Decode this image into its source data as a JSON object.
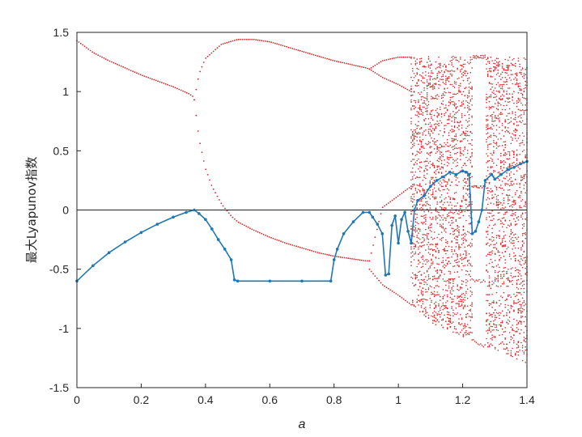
{
  "chart_data": {
    "type": "scatter",
    "title": "",
    "xlabel": "a",
    "ylabel": "最大Lyapunov指数",
    "xlim": [
      0,
      1.4
    ],
    "ylim": [
      -1.5,
      1.5
    ],
    "xticks": [
      0,
      0.2,
      0.4,
      0.6,
      0.8,
      1,
      1.2,
      1.4
    ],
    "xtick_labels": [
      "0",
      "0.2",
      "0.4",
      "0.6",
      "0.8",
      "1",
      "1.2",
      "1.4"
    ],
    "yticks": [
      -1.5,
      -1,
      -0.5,
      0,
      0.5,
      1,
      1.5
    ],
    "ytick_labels": [
      "-1.5",
      "-1",
      "-0.5",
      "0",
      "0.5",
      "1",
      "1.5"
    ],
    "grid": false,
    "reference_line_y": 0,
    "series": [
      {
        "kind": "bifurcation-scatter",
        "color": "#d62728",
        "branches": [
          {
            "x": [
              0.0,
              0.05,
              0.1,
              0.15,
              0.2,
              0.25,
              0.3,
              0.35,
              0.36
            ],
            "y": [
              1.43,
              1.33,
              1.26,
              1.2,
              1.14,
              1.09,
              1.04,
              0.98,
              0.96
            ]
          },
          {
            "x": [
              0.365,
              0.38,
              0.4,
              0.45,
              0.5,
              0.55,
              0.6,
              0.65,
              0.7,
              0.75,
              0.8,
              0.85,
              0.9,
              0.91
            ],
            "y": [
              0.93,
              1.15,
              1.28,
              1.4,
              1.44,
              1.44,
              1.42,
              1.38,
              1.34,
              1.3,
              1.26,
              1.23,
              1.2,
              1.19
            ]
          },
          {
            "x": [
              0.365,
              0.38,
              0.4,
              0.42,
              0.45,
              0.48,
              0.5,
              0.55,
              0.6,
              0.65,
              0.7,
              0.75,
              0.8,
              0.85,
              0.9,
              0.91
            ],
            "y": [
              0.93,
              0.6,
              0.35,
              0.2,
              0.05,
              -0.05,
              -0.1,
              -0.17,
              -0.23,
              -0.28,
              -0.32,
              -0.36,
              -0.39,
              -0.41,
              -0.43,
              -0.43
            ]
          },
          {
            "x": [
              0.91,
              0.95,
              1.0,
              1.02,
              1.04
            ],
            "y": [
              1.19,
              1.26,
              1.29,
              1.29,
              1.29
            ]
          },
          {
            "x": [
              0.91,
              0.95,
              1.0,
              1.02,
              1.04
            ],
            "y": [
              1.19,
              1.12,
              1.06,
              1.03,
              1.0
            ]
          },
          {
            "x": [
              0.91,
              0.95,
              1.0,
              1.02,
              1.04
            ],
            "y": [
              -0.43,
              0.02,
              0.12,
              0.16,
              0.2
            ]
          },
          {
            "x": [
              0.91,
              0.95,
              1.0,
              1.02,
              1.04
            ],
            "y": [
              -0.5,
              -0.63,
              -0.72,
              -0.76,
              -0.8
            ]
          }
        ],
        "chaotic_band": {
          "x_range": [
            1.04,
            1.4
          ],
          "upper": [
            [
              1.04,
              1.29
            ],
            [
              1.1,
              1.3
            ],
            [
              1.2,
              1.3
            ],
            [
              1.3,
              1.29
            ],
            [
              1.4,
              1.29
            ]
          ],
          "lower": [
            [
              1.04,
              -0.8
            ],
            [
              1.1,
              -0.95
            ],
            [
              1.2,
              -1.07
            ],
            [
              1.3,
              -1.18
            ],
            [
              1.4,
              -1.3
            ]
          ],
          "window_x_range": [
            1.23,
            1.27
          ]
        }
      },
      {
        "kind": "lyapunov-line",
        "color": "#1f77b4",
        "x": [
          0.0,
          0.05,
          0.1,
          0.15,
          0.2,
          0.25,
          0.3,
          0.34,
          0.365,
          0.38,
          0.4,
          0.42,
          0.44,
          0.46,
          0.48,
          0.49,
          0.5,
          0.6,
          0.7,
          0.79,
          0.8,
          0.81,
          0.83,
          0.86,
          0.89,
          0.91,
          0.92,
          0.935,
          0.95,
          0.96,
          0.97,
          0.98,
          0.99,
          1.0,
          1.01,
          1.02,
          1.03,
          1.04,
          1.05,
          1.06,
          1.08,
          1.1,
          1.12,
          1.14,
          1.16,
          1.18,
          1.2,
          1.21,
          1.22,
          1.23,
          1.24,
          1.25,
          1.26,
          1.27,
          1.29,
          1.3,
          1.32,
          1.34,
          1.36,
          1.38,
          1.4
        ],
        "y": [
          -0.6,
          -0.47,
          -0.36,
          -0.27,
          -0.19,
          -0.12,
          -0.06,
          -0.02,
          0.0,
          -0.03,
          -0.08,
          -0.16,
          -0.25,
          -0.33,
          -0.42,
          -0.59,
          -0.6,
          -0.6,
          -0.6,
          -0.6,
          -0.42,
          -0.33,
          -0.2,
          -0.1,
          -0.02,
          -0.02,
          -0.06,
          -0.12,
          -0.2,
          -0.55,
          -0.54,
          -0.13,
          -0.05,
          -0.28,
          -0.08,
          -0.02,
          -0.18,
          -0.28,
          0.0,
          0.08,
          0.12,
          0.2,
          0.25,
          0.28,
          0.32,
          0.3,
          0.33,
          0.32,
          0.3,
          -0.2,
          -0.18,
          -0.1,
          0.0,
          0.25,
          0.3,
          0.26,
          0.3,
          0.34,
          0.36,
          0.39,
          0.41
        ]
      }
    ]
  }
}
